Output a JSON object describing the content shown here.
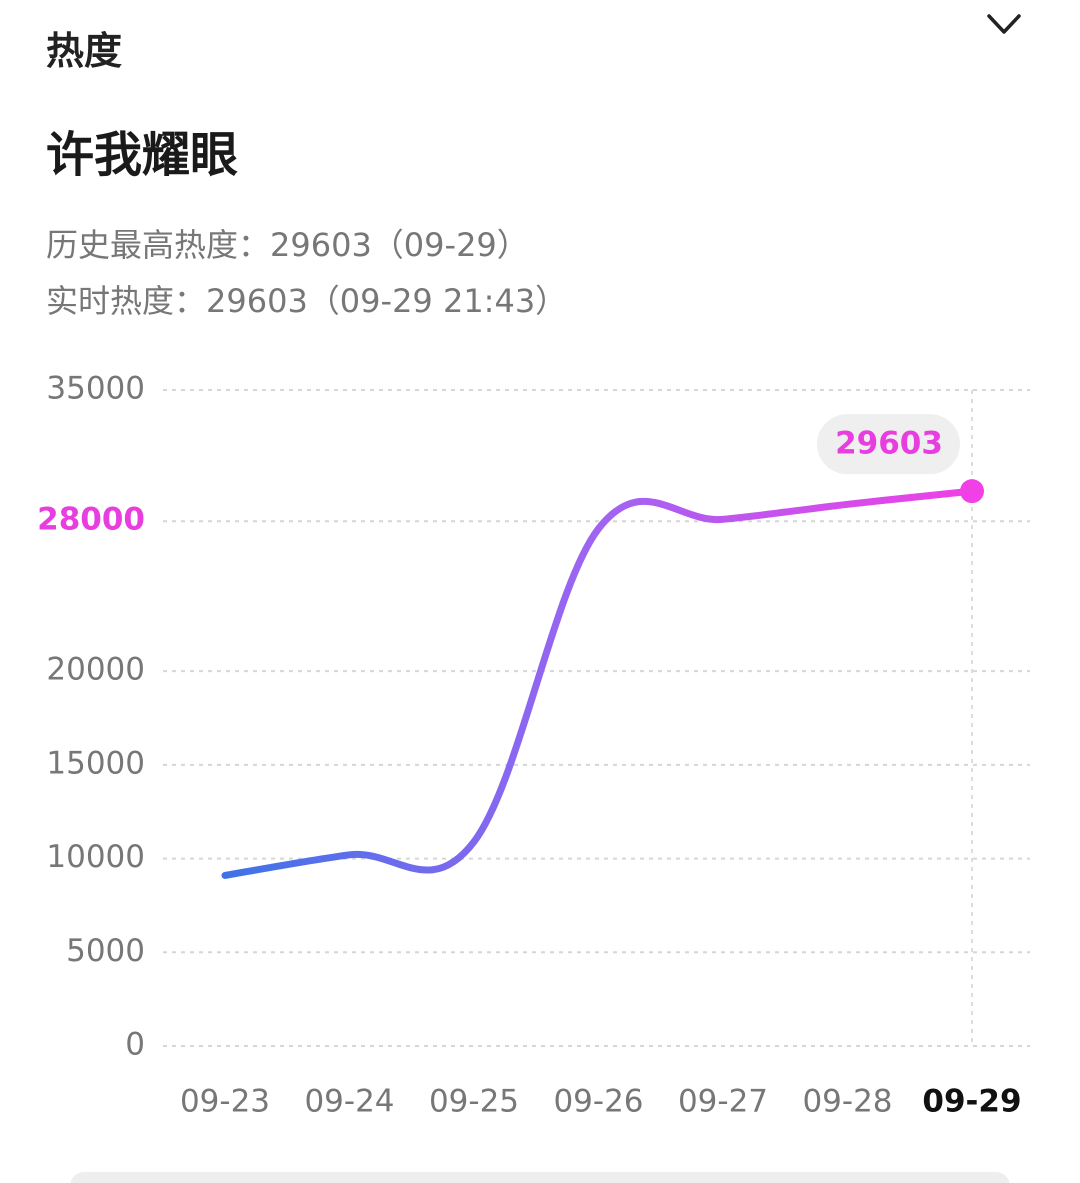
{
  "header": {
    "section": "热度",
    "title": "许我耀眼",
    "peak": "历史最高热度：29603（09-29）",
    "realtime": "实时热度：29603（09-29 21:43）"
  },
  "chart_data": {
    "type": "line",
    "categories": [
      "09-23",
      "09-24",
      "09-25",
      "09-26",
      "09-27",
      "09-28",
      "09-29"
    ],
    "values": [
      9100,
      10200,
      10900,
      27600,
      28100,
      28900,
      29603
    ],
    "ylim": [
      0,
      35000
    ],
    "yticks": [
      0,
      5000,
      10000,
      15000,
      20000,
      28000,
      35000
    ],
    "grid": true,
    "colors": [
      "#3d73e8",
      "#a064f2",
      "#f040e6"
    ],
    "highlight_color": "#e83ee0"
  }
}
